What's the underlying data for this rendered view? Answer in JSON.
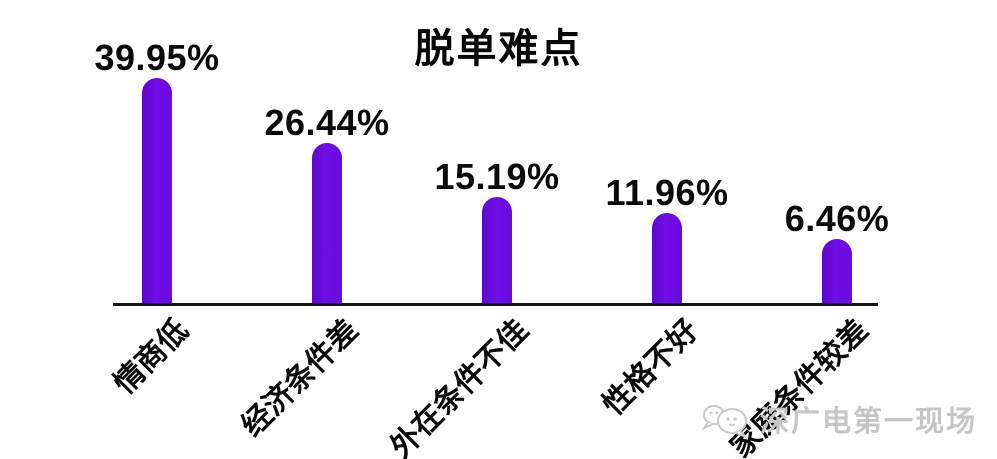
{
  "title": "脱单难点",
  "watermark": {
    "text": "深广电第一现场",
    "icon": "chat-bubbles-logo"
  },
  "colors": {
    "bar": "#6a0adf",
    "title_text": "#050505",
    "axis": "#141414",
    "watermark": "#c6c6c6"
  },
  "chart_data": {
    "type": "bar",
    "title": "脱单难点",
    "categories": [
      "情商低",
      "经济条件差",
      "外在条件不佳",
      "性格不好",
      "家庭条件较差"
    ],
    "values": [
      39.95,
      26.44,
      15.19,
      11.96,
      6.46
    ],
    "value_labels": [
      "39.95%",
      "26.44%",
      "15.19%",
      "11.96%",
      "6.46%"
    ],
    "xlabel": "",
    "ylabel": "",
    "legend": false,
    "grid": false,
    "y_axis_visible": false,
    "x_axis_visible": true,
    "bar_color": "#6a0adf",
    "category_rotation_deg": -45,
    "value_label_position": "above-bar"
  }
}
